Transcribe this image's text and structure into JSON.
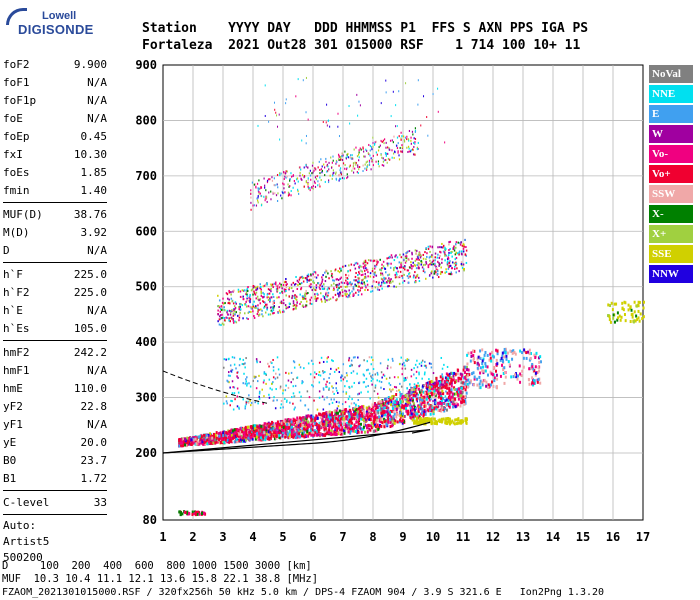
{
  "logo": {
    "top": "Lowell",
    "main": "DIGISONDE"
  },
  "header": {
    "line1": "Station    YYYY DAY   DDD HHMMSS P1  FFS S AXN PPS IGA PS",
    "line2": "Fortaleza  2021 Out28 301 015000 RSF    1 714 100 10+ 11"
  },
  "params_group1": [
    {
      "key": "foF2",
      "val": "9.900"
    },
    {
      "key": "foF1",
      "val": "N/A"
    },
    {
      "key": "foF1p",
      "val": "N/A"
    },
    {
      "key": "foE",
      "val": "N/A"
    },
    {
      "key": "foEp",
      "val": "0.45"
    },
    {
      "key": "fxI",
      "val": "10.30"
    },
    {
      "key": "foEs",
      "val": "1.85"
    },
    {
      "key": "fmin",
      "val": "1.40"
    }
  ],
  "params_group2": [
    {
      "key": "MUF(D)",
      "val": "38.76"
    },
    {
      "key": "M(D)",
      "val": "3.92"
    },
    {
      "key": "D",
      "val": "N/A"
    }
  ],
  "params_group3": [
    {
      "key": "h`F",
      "val": "225.0"
    },
    {
      "key": "h`F2",
      "val": "225.0"
    },
    {
      "key": "h`E",
      "val": "N/A"
    },
    {
      "key": "h`Es",
      "val": "105.0"
    }
  ],
  "params_group4": [
    {
      "key": "hmF2",
      "val": "242.2"
    },
    {
      "key": "hmF1",
      "val": "N/A"
    },
    {
      "key": "hmE",
      "val": "110.0"
    },
    {
      "key": "yF2",
      "val": "22.8"
    },
    {
      "key": "yF1",
      "val": "N/A"
    },
    {
      "key": "yE",
      "val": "20.0"
    },
    {
      "key": "B0",
      "val": "23.7"
    },
    {
      "key": "B1",
      "val": "1.72"
    }
  ],
  "params_group5": [
    {
      "key": "C-level",
      "val": "33"
    }
  ],
  "auto": {
    "l1": "Auto:",
    "l2": "Artist5",
    "l3": "500200"
  },
  "legend": [
    {
      "label": "NoVal",
      "color": "#808080"
    },
    {
      "label": "NNE",
      "color": "#00e0f0"
    },
    {
      "label": "E",
      "color": "#40a0f0"
    },
    {
      "label": "W",
      "color": "#a000a0"
    },
    {
      "label": "Vo-",
      "color": "#f00080"
    },
    {
      "label": "Vo+",
      "color": "#f00030"
    },
    {
      "label": "SSW",
      "color": "#f0a8a8"
    },
    {
      "label": "X-",
      "color": "#008000"
    },
    {
      "label": "X+",
      "color": "#a0d040"
    },
    {
      "label": "SSE",
      "color": "#d0d000"
    },
    {
      "label": "NNW",
      "color": "#2000e0"
    }
  ],
  "chart_data": {
    "type": "scatter",
    "x_ticks": [
      "1",
      "2",
      "3",
      "4",
      "5",
      "6",
      "7",
      "8",
      "9",
      "10",
      "11",
      "12",
      "13",
      "14",
      "15",
      "16",
      "17"
    ],
    "y_ticks": [
      "80",
      "200",
      "300",
      "400",
      "500",
      "600",
      "700",
      "800",
      "900"
    ],
    "xlim": [
      1,
      17
    ],
    "y_breaks": [
      80,
      200,
      900
    ]
  },
  "footer": {
    "line1": "D     100  200  400  600  800 1000 1500 3000 [km]",
    "line2": "MUF  10.3 10.4 11.1 12.1 13.6 15.8 22.1 38.8 [MHz]",
    "line3": "FZAOM_2021301015000.RSF / 320fx256h 50 kHz 5.0 km / DPS-4 FZAOM 904 / 3.9 S 321.6 E   Ion2Png 1.3.20"
  }
}
